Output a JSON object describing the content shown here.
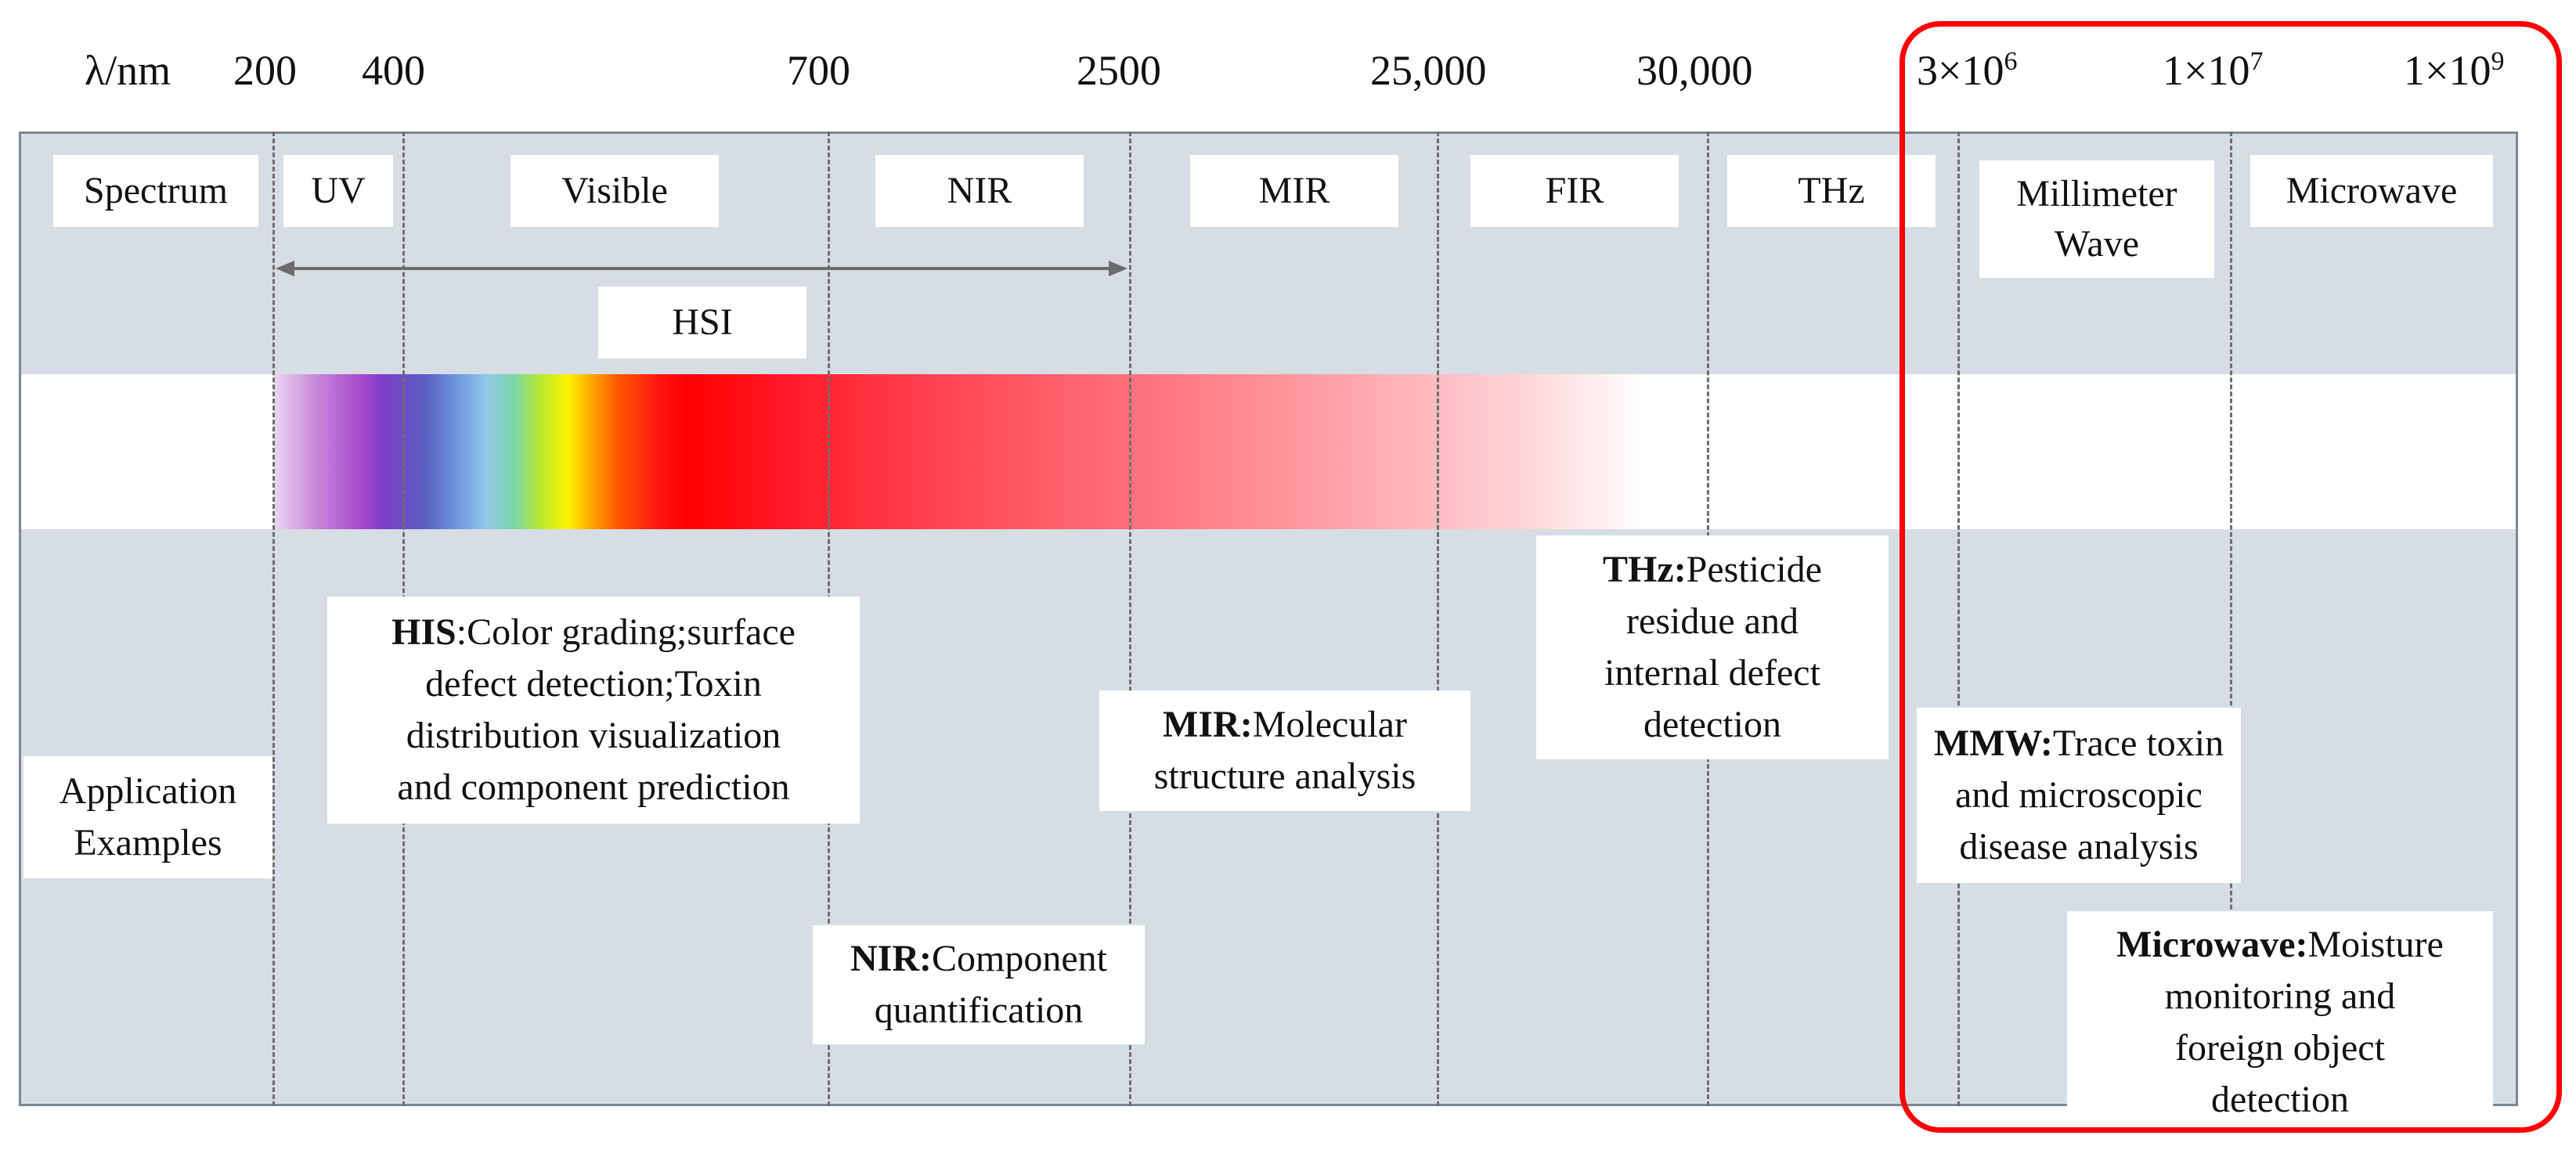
{
  "scale": {
    "axis_label": "λ/nm",
    "ticks": [
      {
        "label": "200"
      },
      {
        "label": "400"
      },
      {
        "label": "700"
      },
      {
        "label": "2500"
      },
      {
        "label": "25,000"
      },
      {
        "label": "30,000"
      },
      {
        "base": "3×10",
        "exp": "6"
      },
      {
        "base": "1×10",
        "exp": "7"
      },
      {
        "base": "1×10",
        "exp": "9"
      }
    ]
  },
  "spectrum": {
    "row_label": "Spectrum",
    "bands": [
      "UV",
      "Visible",
      "NIR",
      "MIR",
      "FIR",
      "THz",
      "Millimeter Wave",
      "Microwave"
    ]
  },
  "hsi": {
    "label": "HSI"
  },
  "applications": {
    "row_label_line1": "Application",
    "row_label_line2": "Examples",
    "his": {
      "title": "HIS",
      "text_line1": ":Color grading;surface",
      "text_line2": "defect detection;Toxin",
      "text_line3": "distribution visualization",
      "text_line4": "and component prediction"
    },
    "nir": {
      "title": "NIR:",
      "text_line1": "Component",
      "text_line2": "quantification"
    },
    "mir": {
      "title": "MIR:",
      "text_line1": "Molecular",
      "text_line2": "structure analysis"
    },
    "thz": {
      "title": "THz:",
      "text_line1": "Pesticide",
      "text_line2": "residue and",
      "text_line3": "internal defect",
      "text_line4": "detection"
    },
    "mmw": {
      "title": "MMW:",
      "text_line1": "Trace toxin",
      "text_line2": "and microscopic",
      "text_line3": "disease analysis"
    },
    "microwave": {
      "title": "Microwave:",
      "text_line1": "Moisture",
      "text_line2": "monitoring and",
      "text_line3": "foreign object",
      "text_line4": "detection"
    }
  },
  "colors": {
    "panel": "#d6dde5",
    "highlight": "#ff0000",
    "divider": "#6e6e6e"
  }
}
